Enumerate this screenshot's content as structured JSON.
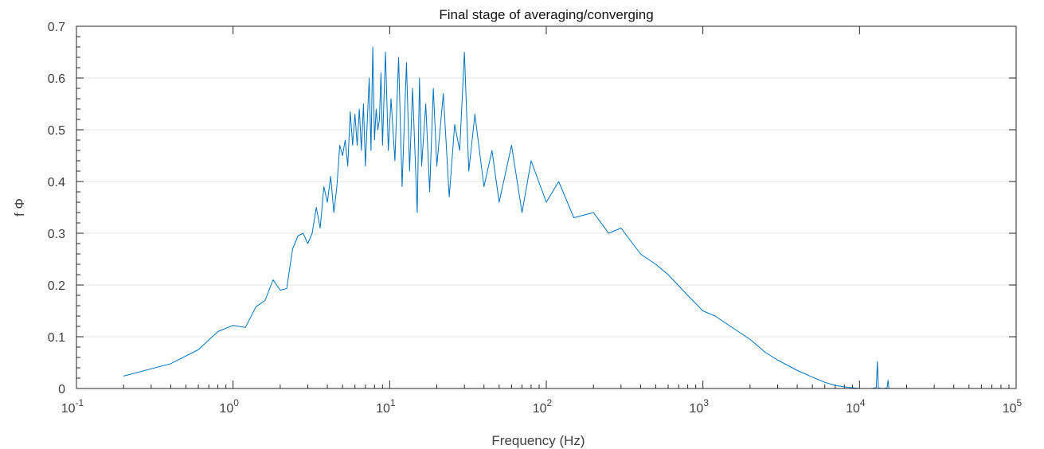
{
  "chart_data": {
    "type": "line",
    "title": "Final stage of averaging/converging",
    "xlabel": "Frequency (Hz)",
    "ylabel": "f Φ",
    "xscale": "log",
    "xlim": [
      0.1,
      100000
    ],
    "ylim": [
      0,
      0.7
    ],
    "grid": "horizontal",
    "legend": "none",
    "x_ticks": [
      {
        "base": "10",
        "exp": "-1"
      },
      {
        "base": "10",
        "exp": "0"
      },
      {
        "base": "10",
        "exp": "1"
      },
      {
        "base": "10",
        "exp": "2"
      },
      {
        "base": "10",
        "exp": "3"
      },
      {
        "base": "10",
        "exp": "4"
      },
      {
        "base": "10",
        "exp": "5"
      }
    ],
    "y_ticks": [
      "0",
      "0.1",
      "0.2",
      "0.3",
      "0.4",
      "0.5",
      "0.6",
      "0.7"
    ],
    "series": [
      {
        "color": "#0072BD",
        "x": [
          0.2,
          0.4,
          0.6,
          0.8,
          1.0,
          1.2,
          1.4,
          1.6,
          1.8,
          2.0,
          2.2,
          2.4,
          2.6,
          2.8,
          3.0,
          3.2,
          3.4,
          3.6,
          3.8,
          4.0,
          4.2,
          4.4,
          4.6,
          4.8,
          5.0,
          5.2,
          5.4,
          5.6,
          5.8,
          6.0,
          6.2,
          6.4,
          6.6,
          6.8,
          7.0,
          7.2,
          7.4,
          7.6,
          7.8,
          8.0,
          8.2,
          8.4,
          8.6,
          8.8,
          9.0,
          9.4,
          9.8,
          10.2,
          10.8,
          11.4,
          12.0,
          12.8,
          13.4,
          14.0,
          15.0,
          15.5,
          16.0,
          17.0,
          18.0,
          19.0,
          20.0,
          22.0,
          24.0,
          26.0,
          28.0,
          30.0,
          32.0,
          35.0,
          40.0,
          45.0,
          50.0,
          60.0,
          70.0,
          80.0,
          100.0,
          120.0,
          150.0,
          200.0,
          250.0,
          300.0,
          400.0,
          500.0,
          600.0,
          800.0,
          1000.0,
          1200.0,
          1500.0,
          2000.0,
          2500.0,
          3000.0,
          4000.0,
          5000.0,
          6000.0,
          7000.0,
          8000.0,
          10000.0,
          11000.0,
          12000.0,
          12800.0,
          13000.0,
          13200.0,
          14000.0,
          15000.0,
          15200.0,
          15400.0
        ],
        "y": [
          0.024,
          0.048,
          0.075,
          0.11,
          0.122,
          0.118,
          0.158,
          0.17,
          0.21,
          0.19,
          0.193,
          0.27,
          0.295,
          0.3,
          0.28,
          0.3,
          0.35,
          0.31,
          0.39,
          0.36,
          0.41,
          0.34,
          0.39,
          0.47,
          0.45,
          0.48,
          0.43,
          0.535,
          0.47,
          0.53,
          0.47,
          0.54,
          0.46,
          0.55,
          0.43,
          0.52,
          0.6,
          0.46,
          0.66,
          0.48,
          0.54,
          0.5,
          0.52,
          0.61,
          0.47,
          0.65,
          0.46,
          0.56,
          0.44,
          0.64,
          0.39,
          0.63,
          0.42,
          0.58,
          0.34,
          0.6,
          0.43,
          0.55,
          0.38,
          0.58,
          0.43,
          0.57,
          0.37,
          0.51,
          0.46,
          0.65,
          0.42,
          0.53,
          0.39,
          0.46,
          0.36,
          0.47,
          0.34,
          0.44,
          0.36,
          0.4,
          0.33,
          0.34,
          0.3,
          0.31,
          0.26,
          0.24,
          0.22,
          0.18,
          0.15,
          0.14,
          0.12,
          0.095,
          0.07,
          0.055,
          0.035,
          0.022,
          0.012,
          0.006,
          0.003,
          0.0,
          0.0,
          0.0,
          0.002,
          0.052,
          0.001,
          0.0,
          0.001,
          0.016,
          0.0
        ]
      }
    ]
  }
}
